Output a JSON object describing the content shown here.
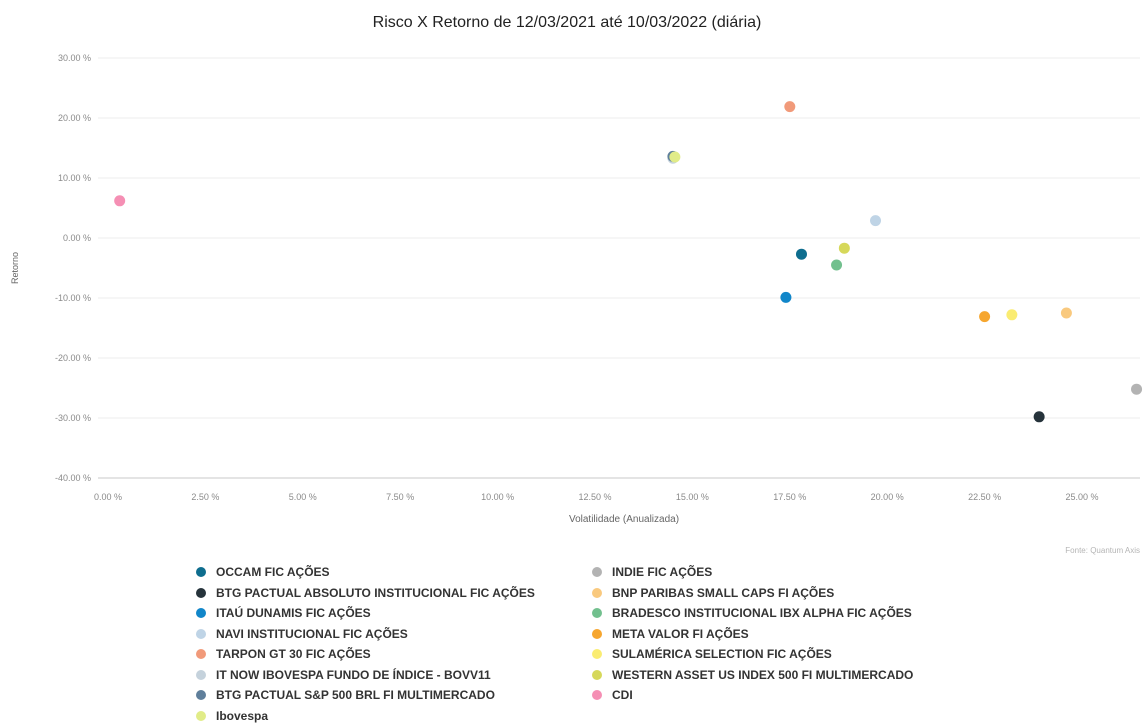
{
  "chart_data": {
    "type": "scatter",
    "title": "Risco X Retorno de 12/03/2021 até 10/03/2022 (diária)",
    "xlabel": "Volatilidade (Anualizada)",
    "ylabel": "Retorno",
    "source": "Fonte: Quantum Axis",
    "xlim": [
      0,
      26.5
    ],
    "ylim": [
      -40,
      30
    ],
    "x_ticks": [
      "0.00 %",
      "2.50 %",
      "5.00 %",
      "7.50 %",
      "10.00 %",
      "12.50 %",
      "15.00 %",
      "17.50 %",
      "20.00 %",
      "22.50 %",
      "25.00 %"
    ],
    "x_tick_values": [
      0,
      2.5,
      5,
      7.5,
      10,
      12.5,
      15,
      17.5,
      20,
      22.5,
      25
    ],
    "y_ticks": [
      "30.00 %",
      "20.00 %",
      "10.00 %",
      "0.00 %",
      "-10.00 %",
      "-20.00 %",
      "-30.00 %",
      "-40.00 %"
    ],
    "y_tick_values": [
      30,
      20,
      10,
      0,
      -10,
      -20,
      -30,
      -40
    ],
    "grid": true,
    "legend_position": "bottom",
    "series": [
      {
        "name": "OCCAM FIC AÇÕES",
        "color": "#0e6d8e",
        "x": 17.8,
        "y": -2.7
      },
      {
        "name": "BTG PACTUAL ABSOLUTO INSTITUCIONAL FIC AÇÕES",
        "color": "#26333b",
        "x": 23.9,
        "y": -29.8
      },
      {
        "name": "ITAÚ DUNAMIS FIC AÇÕES",
        "color": "#1186c9",
        "x": 17.4,
        "y": -9.9
      },
      {
        "name": "NAVI INSTITUCIONAL FIC AÇÕES",
        "color": "#bfd4e6",
        "x": 19.7,
        "y": 2.9
      },
      {
        "name": "TARPON GT 30 FIC AÇÕES",
        "color": "#f19a7a",
        "x": 17.5,
        "y": 21.9
      },
      {
        "name": "IT NOW IBOVESPA FUNDO DE ÍNDICE - BOVV11",
        "color": "#c5d2dc",
        "x": 14.5,
        "y": 13.3
      },
      {
        "name": "BTG PACTUAL S&P 500 BRL FI MULTIMERCADO",
        "color": "#5f7f9b",
        "x": 14.5,
        "y": 13.6
      },
      {
        "name": "Ibovespa",
        "color": "#e1ec88",
        "x": 14.55,
        "y": 13.5
      },
      {
        "name": "INDIE FIC AÇÕES",
        "color": "#b3b3b3",
        "x": 26.4,
        "y": -25.2
      },
      {
        "name": "BNP PARIBAS SMALL CAPS FI AÇÕES",
        "color": "#f9c97e",
        "x": 24.6,
        "y": -12.5
      },
      {
        "name": "BRADESCO INSTITUCIONAL IBX ALPHA FIC AÇÕES",
        "color": "#72c08e",
        "x": 18.7,
        "y": -4.5
      },
      {
        "name": "META VALOR FI AÇÕES",
        "color": "#f6a62f",
        "x": 22.5,
        "y": -13.1
      },
      {
        "name": "SULAMÉRICA SELECTION FIC AÇÕES",
        "color": "#faec72",
        "x": 23.2,
        "y": -12.8
      },
      {
        "name": "WESTERN ASSET US INDEX 500 FI MULTIMERCADO",
        "color": "#d6d85a",
        "x": 18.9,
        "y": -1.7
      },
      {
        "name": "CDI",
        "color": "#f58fb4",
        "x": 0.3,
        "y": 6.2
      }
    ]
  }
}
